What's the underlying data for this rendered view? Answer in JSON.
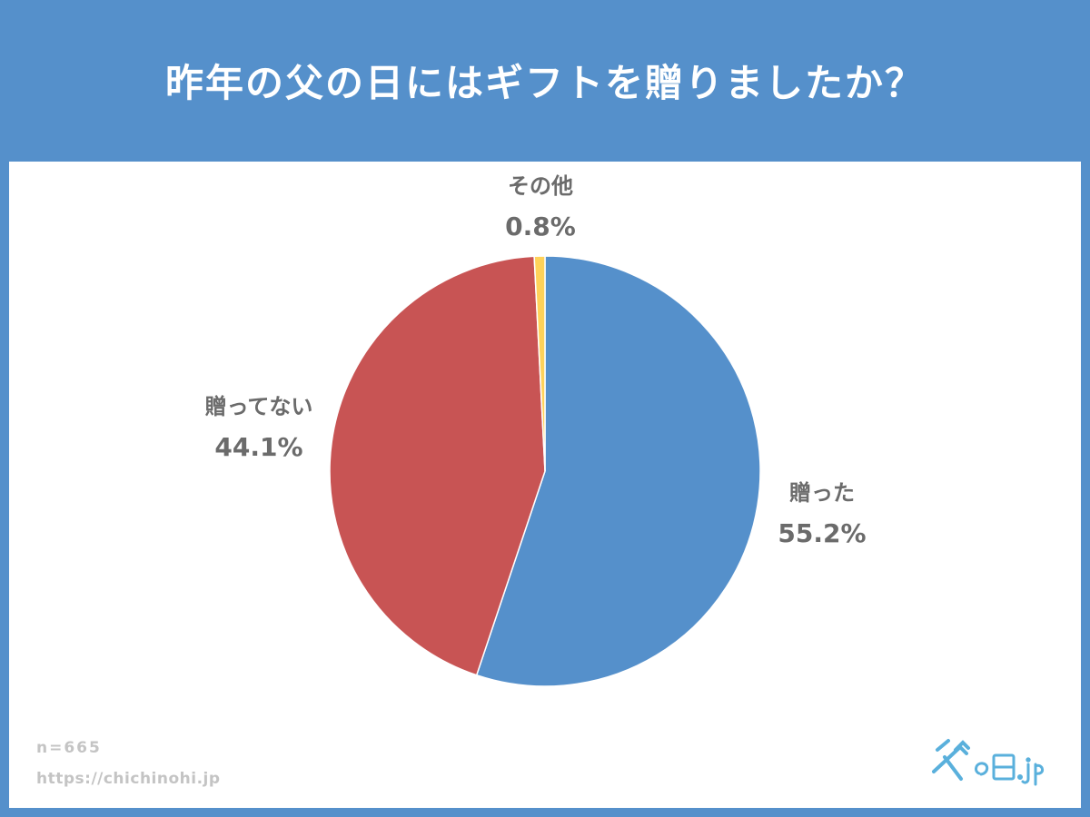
{
  "title": "昨年の父の日にはギフトを贈りましたか？",
  "footer": {
    "sample_size": "n=665",
    "source": "https://chichinohi.jp"
  },
  "logo": {
    "text": "父の日.jp",
    "color": "#5ab0dc"
  },
  "chart_data": {
    "type": "pie",
    "slices": [
      {
        "label": "贈った",
        "value": 55.2,
        "display": "55.2%",
        "color": "#5590cb"
      },
      {
        "label": "贈ってない",
        "value": 44.1,
        "display": "44.1%",
        "color": "#c85454"
      },
      {
        "label": "その他",
        "value": 0.8,
        "display": "0.8%",
        "color": "#ffd25a"
      }
    ],
    "start_angle": "12 o'clock",
    "direction": "clockwise",
    "label_color": "#6b6b6b"
  }
}
